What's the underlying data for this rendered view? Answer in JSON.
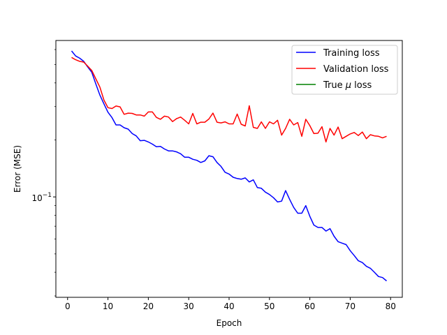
{
  "chart_data": {
    "type": "line",
    "xlabel": "Epoch",
    "ylabel": "Error (MSE)",
    "yscale": "log",
    "xlim": [
      -2.9,
      82.9
    ],
    "ylim": [
      0.0295,
      0.67
    ],
    "grid": false,
    "legend_position": "top-right",
    "x_ticks": [
      0,
      10,
      20,
      30,
      40,
      50,
      60,
      70,
      80
    ],
    "x_tick_labels": [
      "0",
      "10",
      "20",
      "30",
      "40",
      "50",
      "60",
      "70",
      "80"
    ],
    "y_major_tick": 0.1,
    "y_major_tick_label_base": "10",
    "y_major_tick_label_exp": "−1",
    "legend": {
      "training_label": "Training loss",
      "validation_label": "Validation loss",
      "true_mu_label_pre": "True ",
      "true_mu_label_sym": "μ",
      "true_mu_label_post": " loss"
    },
    "series": [
      {
        "name": "Training loss",
        "color": "#0000ff",
        "x": [
          1,
          2,
          3,
          4,
          5,
          6,
          7,
          8,
          9,
          10,
          11,
          12,
          13,
          14,
          15,
          16,
          17,
          18,
          19,
          20,
          21,
          22,
          23,
          24,
          25,
          26,
          27,
          28,
          29,
          30,
          31,
          32,
          33,
          34,
          35,
          36,
          37,
          38,
          39,
          40,
          41,
          42,
          43,
          44,
          45,
          46,
          47,
          48,
          49,
          50,
          51,
          52,
          53,
          54,
          55,
          56,
          57,
          58,
          59,
          60,
          61,
          62,
          63,
          64,
          65,
          66,
          67,
          68,
          69,
          70,
          71,
          72,
          73,
          74,
          75,
          76,
          77,
          78,
          79
        ],
        "y": [
          0.59,
          0.555,
          0.54,
          0.52,
          0.485,
          0.455,
          0.395,
          0.345,
          0.31,
          0.28,
          0.262,
          0.24,
          0.24,
          0.232,
          0.228,
          0.216,
          0.21,
          0.198,
          0.199,
          0.195,
          0.19,
          0.184,
          0.185,
          0.179,
          0.175,
          0.175,
          0.173,
          0.169,
          0.162,
          0.162,
          0.158,
          0.156,
          0.152,
          0.155,
          0.165,
          0.163,
          0.152,
          0.145,
          0.135,
          0.132,
          0.127,
          0.125,
          0.124,
          0.126,
          0.12,
          0.123,
          0.112,
          0.111,
          0.106,
          0.103,
          0.099,
          0.094,
          0.095,
          0.108,
          0.097,
          0.088,
          0.082,
          0.082,
          0.09,
          0.079,
          0.071,
          0.069,
          0.069,
          0.066,
          0.068,
          0.062,
          0.058,
          0.057,
          0.056,
          0.052,
          0.049,
          0.046,
          0.045,
          0.043,
          0.042,
          0.04,
          0.038,
          0.0375,
          0.036
        ]
      },
      {
        "name": "Validation loss",
        "color": "#ff0000",
        "x": [
          1,
          2,
          3,
          4,
          5,
          6,
          7,
          8,
          9,
          10,
          11,
          12,
          13,
          14,
          15,
          16,
          17,
          18,
          19,
          20,
          21,
          22,
          23,
          24,
          25,
          26,
          27,
          28,
          29,
          30,
          31,
          32,
          33,
          34,
          35,
          36,
          37,
          38,
          39,
          40,
          41,
          42,
          43,
          44,
          45,
          46,
          47,
          48,
          49,
          50,
          51,
          52,
          53,
          54,
          55,
          56,
          57,
          58,
          59,
          60,
          61,
          62,
          63,
          64,
          65,
          66,
          67,
          68,
          69,
          70,
          71,
          72,
          73,
          74,
          75,
          76,
          77,
          78,
          79
        ],
        "y": [
          0.545,
          0.53,
          0.52,
          0.515,
          0.49,
          0.465,
          0.42,
          0.38,
          0.325,
          0.296,
          0.293,
          0.302,
          0.299,
          0.273,
          0.277,
          0.276,
          0.271,
          0.271,
          0.267,
          0.281,
          0.281,
          0.263,
          0.257,
          0.267,
          0.264,
          0.25,
          0.259,
          0.264,
          0.254,
          0.243,
          0.276,
          0.243,
          0.248,
          0.248,
          0.258,
          0.277,
          0.248,
          0.246,
          0.249,
          0.243,
          0.243,
          0.274,
          0.242,
          0.237,
          0.303,
          0.233,
          0.23,
          0.249,
          0.23,
          0.249,
          0.243,
          0.254,
          0.212,
          0.23,
          0.257,
          0.24,
          0.247,
          0.209,
          0.257,
          0.238,
          0.216,
          0.217,
          0.235,
          0.195,
          0.23,
          0.212,
          0.234,
          0.203,
          0.209,
          0.215,
          0.219,
          0.211,
          0.22,
          0.203,
          0.213,
          0.21,
          0.209,
          0.205,
          0.209
        ]
      },
      {
        "name": "True μ loss",
        "color": "#008000",
        "x": [],
        "y": []
      }
    ]
  }
}
